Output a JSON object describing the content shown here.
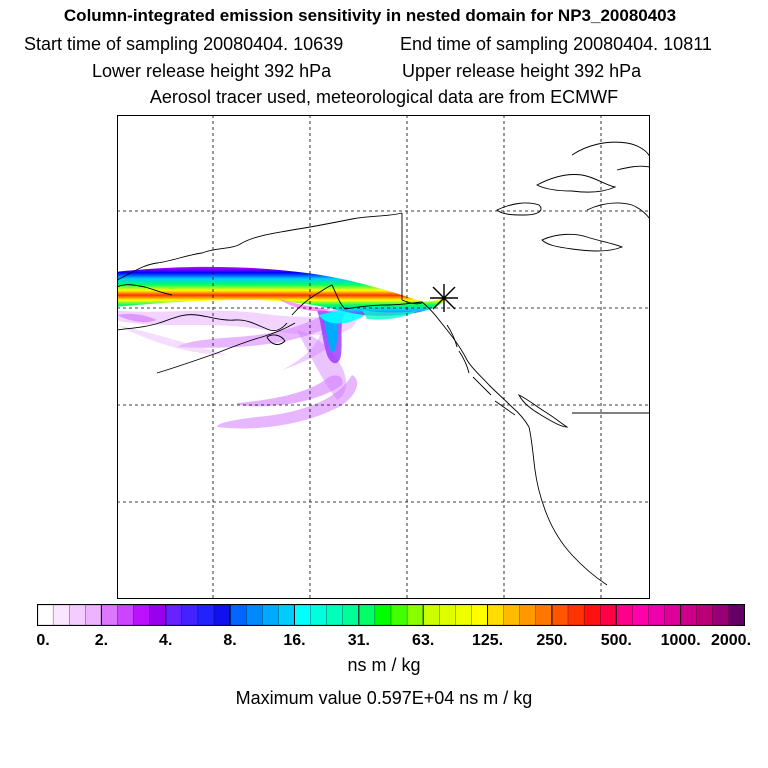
{
  "header": {
    "title": "Column-integrated emission sensitivity in nested domain for NP3_20080403",
    "start_time": "Start time of sampling 20080404. 10639",
    "end_time": "End time of sampling 20080404. 10811",
    "lower_release": "Lower release height  392 hPa",
    "upper_release": "Upper release height  392 hPa",
    "tracer_info": "Aerosol tracer used, meteorological data are from ECMWF"
  },
  "map": {
    "receptor_marker": "release-point-star",
    "plume_colors": [
      "#cc00ff",
      "#ee88ff",
      "#0000ff",
      "#00ffff",
      "#00ff00",
      "#ffff00",
      "#ff0000",
      "#ff00ff"
    ]
  },
  "legend": {
    "tick_labels": [
      "0.",
      "2.",
      "4.",
      "8.",
      "16.",
      "31.",
      "63.",
      "125.",
      "250.",
      "500.",
      "1000.",
      "2000."
    ],
    "segment_colors": [
      "#ffffff",
      "#fbe6ff",
      "#f4ccff",
      "#edb3ff",
      "#dd77ff",
      "#cc44ff",
      "#bb11ff",
      "#9900ee",
      "#6622ff",
      "#4422ff",
      "#2222ff",
      "#1111ee",
      "#0066ff",
      "#0088ff",
      "#00aaff",
      "#00ccff",
      "#00ffff",
      "#00ffdd",
      "#00ffbb",
      "#00ff99",
      "#00ff66",
      "#00ff00",
      "#44ff00",
      "#88ff00",
      "#ccff00",
      "#ddff00",
      "#eeff00",
      "#ffff00",
      "#ffdd00",
      "#ffbb00",
      "#ff9900",
      "#ff7700",
      "#ff5500",
      "#ff3300",
      "#ff1111",
      "#ff0044",
      "#ff0088",
      "#ff00aa",
      "#ee00aa",
      "#dd0099",
      "#cc0088",
      "#bb0077",
      "#990077",
      "#660066"
    ],
    "unit": "ns m / kg",
    "max_value": "Maximum value  0.597E+04 ns m / kg"
  }
}
